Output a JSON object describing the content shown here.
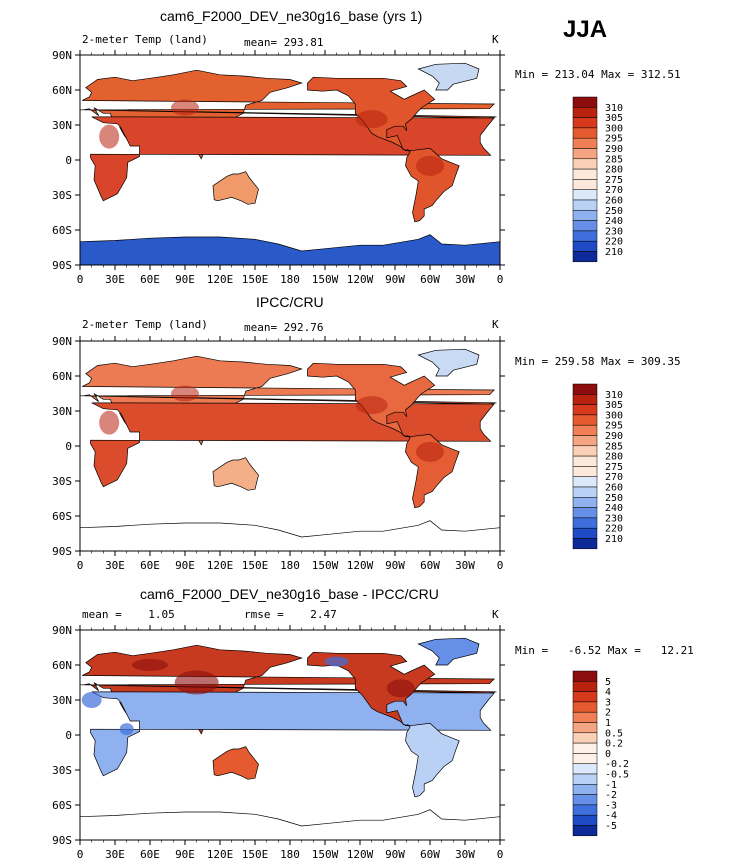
{
  "season": "JJA",
  "panels": [
    {
      "title": "cam6_F2000_DEV_ne30g16_base (yrs 1)",
      "left_label": "2-meter Temp (land)",
      "mid_label": "mean= 293.81",
      "right_label": "K",
      "stats": "Min = 213.04 Max = 312.51",
      "colorbar_labels": [
        "310",
        "305",
        "300",
        "295",
        "290",
        "285",
        "280",
        "275",
        "270",
        "260",
        "250",
        "240",
        "230",
        "220",
        "210"
      ]
    },
    {
      "title": "IPCC/CRU",
      "left_label": "2-meter Temp (land)",
      "mid_label": "mean= 292.76",
      "right_label": "K",
      "stats": "Min = 259.58 Max = 309.35",
      "colorbar_labels": [
        "310",
        "305",
        "300",
        "295",
        "290",
        "285",
        "280",
        "275",
        "270",
        "260",
        "250",
        "240",
        "230",
        "220",
        "210"
      ]
    },
    {
      "title": "cam6_F2000_DEV_ne30g16_base - IPCC/CRU",
      "left_label": "mean =    1.05",
      "mid_label": "rmse =    2.47",
      "right_label": "K",
      "stats": "Min =   -6.52 Max =   12.21",
      "colorbar_labels": [
        "5",
        "4",
        "3",
        "2",
        "1",
        "0.5",
        "0.2",
        "0",
        "-0.2",
        "-0.5",
        "-1",
        "-2",
        "-3",
        "-4",
        "-5"
      ]
    }
  ],
  "chart_data": [
    {
      "type": "heatmap",
      "title": "cam6_F2000_DEV_ne30g16_base (yrs 1)",
      "variable": "2-meter Temp (land)",
      "units": "K",
      "mean": 293.81,
      "min": 213.04,
      "max": 312.51,
      "x_ticks": [
        "0",
        "30E",
        "60E",
        "90E",
        "120E",
        "150E",
        "180",
        "150W",
        "120W",
        "90W",
        "60W",
        "30W",
        "0"
      ],
      "y_ticks": [
        "90N",
        "60N",
        "30N",
        "0",
        "30S",
        "60S",
        "90S"
      ],
      "colorbar": [
        310,
        305,
        300,
        295,
        290,
        285,
        280,
        275,
        270,
        260,
        250,
        240,
        230,
        220,
        210
      ]
    },
    {
      "type": "heatmap",
      "title": "IPCC/CRU",
      "variable": "2-meter Temp (land)",
      "units": "K",
      "mean": 292.76,
      "min": 259.58,
      "max": 309.35,
      "x_ticks": [
        "0",
        "30E",
        "60E",
        "90E",
        "120E",
        "150E",
        "180",
        "150W",
        "120W",
        "90W",
        "60W",
        "30W",
        "0"
      ],
      "y_ticks": [
        "90N",
        "60N",
        "30N",
        "0",
        "30S",
        "60S",
        "90S"
      ],
      "colorbar": [
        310,
        305,
        300,
        295,
        290,
        285,
        280,
        275,
        270,
        260,
        250,
        240,
        230,
        220,
        210
      ]
    },
    {
      "type": "heatmap",
      "title": "cam6_F2000_DEV_ne30g16_base - IPCC/CRU",
      "units": "K",
      "mean": 1.05,
      "rmse": 2.47,
      "min": -6.52,
      "max": 12.21,
      "x_ticks": [
        "0",
        "30E",
        "60E",
        "90E",
        "120E",
        "150E",
        "180",
        "150W",
        "120W",
        "90W",
        "60W",
        "30W",
        "0"
      ],
      "y_ticks": [
        "90N",
        "60N",
        "30N",
        "0",
        "30S",
        "60S",
        "90S"
      ],
      "colorbar": [
        5,
        4,
        3,
        2,
        1,
        0.5,
        0.2,
        0,
        -0.2,
        -0.5,
        -1,
        -2,
        -3,
        -4,
        -5
      ]
    }
  ],
  "x_ticks": [
    "0",
    "30E",
    "60E",
    "90E",
    "120E",
    "150E",
    "180",
    "150W",
    "120W",
    "90W",
    "60W",
    "30W",
    "0"
  ],
  "y_ticks": [
    "90N",
    "60N",
    "30N",
    "0",
    "30S",
    "60S",
    "90S"
  ],
  "colors": {
    "temp_scale": [
      "#8c0d0d",
      "#b8230f",
      "#d63a1a",
      "#e55a2e",
      "#f07f55",
      "#f5a582",
      "#fad0b6",
      "#fde9dc",
      "#dce9fa",
      "#b9d1f5",
      "#8fb1ef",
      "#6690e8",
      "#3f6fdc",
      "#1f4ac6",
      "#0e2a99"
    ],
    "diff_scale": [
      "#8c0d0d",
      "#b8230f",
      "#d63a1a",
      "#e55a2e",
      "#f07f55",
      "#f5a582",
      "#fad0b6",
      "#fdf0e6",
      "#dce9fa",
      "#b9d1f5",
      "#8fb1ef",
      "#6690e8",
      "#3f6fdc",
      "#1f4ac6",
      "#0e2a99"
    ]
  }
}
